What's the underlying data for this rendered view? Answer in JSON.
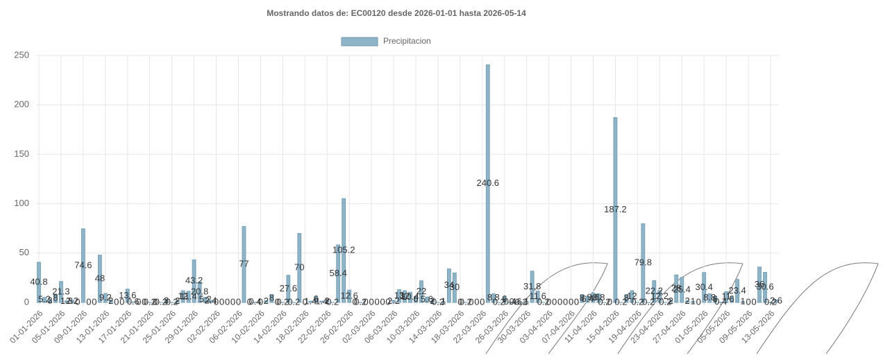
{
  "chart_data": {
    "type": "bar",
    "title": "Mostrando datos de: EC00120 desde 2026-01-01 hasta 2026-05-14",
    "series": [
      {
        "name": "Precipitacion",
        "color": "#8fb3c7",
        "values": [
          40.8,
          5.2,
          3,
          8,
          21.3,
          1.8,
          2.2,
          0,
          74.6,
          0,
          0,
          48,
          9.2,
          2,
          0,
          0,
          13.6,
          0.6,
          0,
          0,
          0.2,
          0,
          0.2,
          3,
          0.2,
          2,
          12,
          11.4,
          43.2,
          20.8,
          5.2,
          2.4,
          0,
          0,
          0,
          0,
          0,
          77,
          0,
          0.4,
          0,
          2,
          8,
          0,
          0.2,
          27.6,
          0.2,
          70,
          0,
          1.4,
          6,
          1.4,
          2,
          0.2,
          58.4,
          105.2,
          12.6,
          0,
          0.2,
          0,
          0,
          0,
          0,
          0,
          2.2,
          13,
          12,
          10.4,
          6,
          22,
          5.6,
          2,
          0.2,
          1,
          34,
          30,
          0,
          0.2,
          0,
          0,
          0,
          240.6,
          8.8,
          0.2,
          6,
          0.4,
          0.6,
          0.2,
          1,
          31.8,
          11.6,
          0.2,
          0,
          0,
          0,
          0,
          0,
          0,
          8,
          6.4,
          9.8,
          8.8,
          0.2,
          0,
          187.2,
          0.2,
          8,
          12,
          0.2,
          79.8,
          0.2,
          22.2,
          12.2,
          0.2,
          2,
          28,
          25.4,
          2,
          1,
          0,
          30.4,
          8.8,
          6,
          0.4,
          11,
          6,
          23.4,
          1,
          0,
          0,
          36,
          30.6,
          0.2,
          2.6
        ]
      }
    ],
    "categories": [
      "01-01-2026",
      null,
      null,
      null,
      "05-01-2026",
      null,
      null,
      null,
      "09-01-2026",
      null,
      null,
      null,
      "13-01-2026",
      null,
      null,
      null,
      "17-01-2026",
      null,
      null,
      null,
      "21-01-2026",
      null,
      null,
      null,
      "25-01-2026",
      null,
      null,
      null,
      "29-01-2026",
      null,
      null,
      null,
      "02-02-2026",
      null,
      null,
      null,
      "06-02-2026",
      null,
      null,
      null,
      "10-02-2026",
      null,
      null,
      null,
      "14-02-2026",
      null,
      null,
      null,
      "18-02-2026",
      null,
      null,
      null,
      "22-02-2026",
      null,
      null,
      null,
      "26-02-2026",
      null,
      null,
      null,
      "02-03-2026",
      null,
      null,
      null,
      "06-03-2026",
      null,
      null,
      null,
      "10-03-2026",
      null,
      null,
      null,
      "14-03-2026",
      null,
      null,
      null,
      "18-03-2026",
      null,
      null,
      null,
      "22-03-2026",
      null,
      null,
      null,
      "26-03-2026",
      null,
      null,
      null,
      "30-03-2026",
      null,
      null,
      null,
      "03-04-2026",
      null,
      null,
      null,
      "07-04-2026",
      null,
      null,
      null,
      "11-04-2026",
      null,
      null,
      null,
      "15-04-2026",
      null,
      null,
      null,
      "19-04-2026",
      null,
      null,
      null,
      "23-04-2026",
      null,
      null,
      null,
      "27-04-2026",
      null,
      null,
      null,
      "01-05-2026",
      null,
      null,
      null,
      "05-05-2026",
      null,
      null,
      null,
      "09-05-2026",
      null,
      null,
      null,
      "13-05-2026",
      null
    ],
    "ylim": [
      0,
      250
    ],
    "yticks": [
      0,
      50,
      100,
      150,
      200,
      250
    ],
    "grid": true,
    "legend": "top"
  }
}
